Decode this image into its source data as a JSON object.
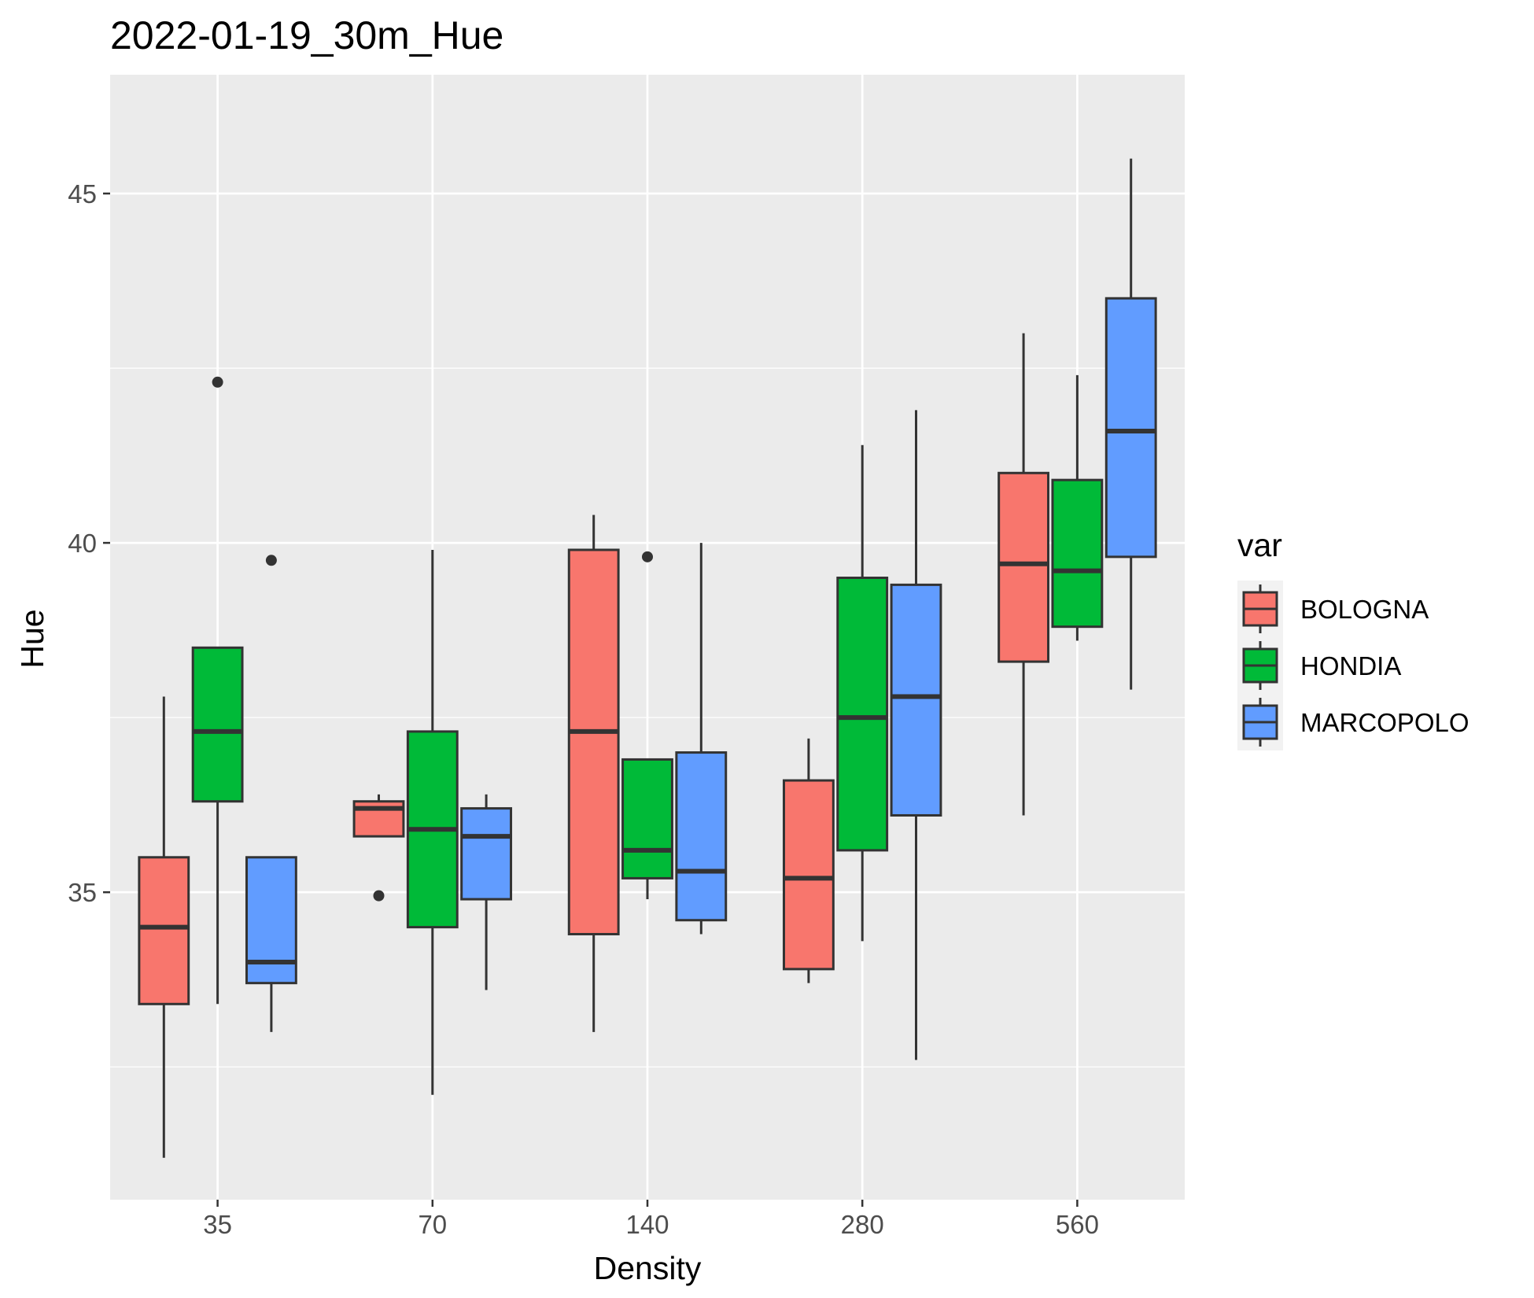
{
  "chart_data": {
    "type": "boxplot",
    "title": "2022-01-19_30m_Hue",
    "xlabel": "Density",
    "ylabel": "Hue",
    "categories": [
      "35",
      "70",
      "140",
      "280",
      "560"
    ],
    "yticks": [
      35,
      40,
      45
    ],
    "ylim": [
      30.6,
      46.7
    ],
    "grid": true,
    "legend": {
      "title": "var",
      "position": "right"
    },
    "series": [
      {
        "name": "BOLOGNA",
        "color": "#F8766D",
        "boxes": [
          {
            "lower": 31.2,
            "q1": 33.4,
            "median": 34.5,
            "q3": 35.5,
            "upper": 37.8,
            "outliers": []
          },
          {
            "lower": 35.8,
            "q1": 35.8,
            "median": 36.2,
            "q3": 36.3,
            "upper": 36.4,
            "outliers": [
              34.95
            ]
          },
          {
            "lower": 33.0,
            "q1": 34.4,
            "median": 37.3,
            "q3": 39.9,
            "upper": 40.4,
            "outliers": []
          },
          {
            "lower": 33.7,
            "q1": 33.9,
            "median": 35.2,
            "q3": 36.6,
            "upper": 37.2,
            "outliers": []
          },
          {
            "lower": 36.1,
            "q1": 38.3,
            "median": 39.7,
            "q3": 41.0,
            "upper": 43.0,
            "outliers": []
          }
        ]
      },
      {
        "name": "HONDIA",
        "color": "#00BA38",
        "boxes": [
          {
            "lower": 33.4,
            "q1": 36.3,
            "median": 37.3,
            "q3": 38.5,
            "upper": 38.5,
            "outliers": [
              42.3
            ]
          },
          {
            "lower": 32.1,
            "q1": 34.5,
            "median": 35.9,
            "q3": 37.3,
            "upper": 39.9,
            "outliers": []
          },
          {
            "lower": 34.9,
            "q1": 35.2,
            "median": 35.6,
            "q3": 36.9,
            "upper": 36.9,
            "outliers": [
              39.8
            ]
          },
          {
            "lower": 34.3,
            "q1": 35.6,
            "median": 37.5,
            "q3": 39.5,
            "upper": 41.4,
            "outliers": []
          },
          {
            "lower": 38.6,
            "q1": 38.8,
            "median": 39.6,
            "q3": 40.9,
            "upper": 42.4,
            "outliers": []
          }
        ]
      },
      {
        "name": "MARCOPOLO",
        "color": "#619CFF",
        "boxes": [
          {
            "lower": 33.0,
            "q1": 33.7,
            "median": 34.0,
            "q3": 35.5,
            "upper": 35.5,
            "outliers": [
              39.75
            ]
          },
          {
            "lower": 33.6,
            "q1": 34.9,
            "median": 35.8,
            "q3": 36.2,
            "upper": 36.4,
            "outliers": []
          },
          {
            "lower": 34.4,
            "q1": 34.6,
            "median": 35.3,
            "q3": 37.0,
            "upper": 40.0,
            "outliers": []
          },
          {
            "lower": 32.6,
            "q1": 36.1,
            "median": 37.8,
            "q3": 39.4,
            "upper": 41.9,
            "outliers": []
          },
          {
            "lower": 37.9,
            "q1": 39.8,
            "median": 41.6,
            "q3": 43.5,
            "upper": 45.5,
            "outliers": []
          }
        ]
      }
    ]
  }
}
